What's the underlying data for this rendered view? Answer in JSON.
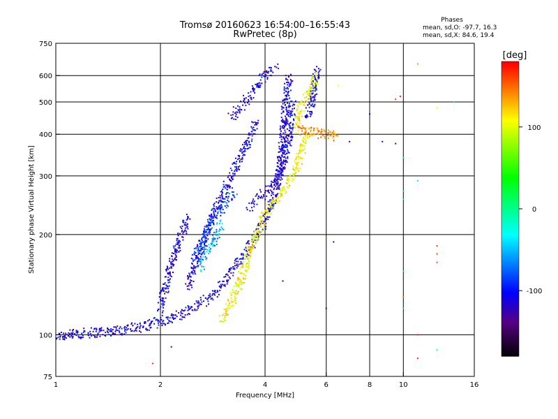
{
  "header": {
    "title": "Tromsø 20160623 16:54:00–16:55:43",
    "subtitle": "RwPretec (8p)",
    "phases_label": "Phases",
    "phases_o": "mean, sd,O: -97.7, 16.3",
    "phases_x": "mean, sd,X:  84.6, 19.4"
  },
  "chart_data": {
    "type": "scatter",
    "xscale": "log",
    "yscale": "log",
    "xlabel": "Frequency [MHz]",
    "ylabel": "Stationary phase Virtual Height [km]",
    "xlim": [
      1,
      16
    ],
    "ylim": [
      75,
      750
    ],
    "xticks": [
      1,
      2,
      4,
      6,
      8,
      10,
      16
    ],
    "xtick_labels": [
      "1",
      "2",
      "4",
      "6",
      "8",
      "10",
      "16"
    ],
    "xgrid": [
      2,
      4,
      6,
      8,
      10
    ],
    "yticks": [
      75,
      100,
      200,
      300,
      400,
      500,
      600,
      750
    ],
    "ytick_labels": [
      "75",
      "100",
      "200",
      "300",
      "400",
      "500",
      "600",
      "750"
    ],
    "ygrid": [
      100,
      200,
      300,
      400,
      500,
      600
    ],
    "grid": true,
    "colorbar": {
      "label": "[deg]",
      "range": [
        -180,
        180
      ],
      "ticks": [
        100,
        0,
        -100
      ],
      "tick_labels": [
        "100",
        "0",
        "-100"
      ]
    },
    "series": [
      {
        "phase": -110,
        "segments": [
          [
            [
              1.0,
              99
            ],
            [
              1.2,
              101
            ],
            [
              1.5,
              103
            ],
            [
              1.8,
              106
            ],
            [
              2.0,
              110
            ],
            [
              2.2,
              113
            ],
            [
              2.4,
              118
            ],
            [
              2.6,
              124
            ],
            [
              2.8,
              130
            ],
            [
              3.0,
              140
            ],
            [
              3.2,
              155
            ],
            [
              3.5,
              175
            ],
            [
              3.8,
              200
            ],
            [
              4.0,
              220
            ],
            [
              4.2,
              250
            ],
            [
              4.4,
              300
            ],
            [
              4.5,
              400
            ],
            [
              4.6,
              520
            ],
            [
              4.7,
              600
            ]
          ],
          [
            [
              2.0,
              120
            ],
            [
              2.1,
              150
            ],
            [
              2.2,
              175
            ],
            [
              2.3,
              200
            ],
            [
              2.4,
              225
            ]
          ],
          [
            [
              2.4,
              140
            ],
            [
              2.6,
              180
            ],
            [
              2.8,
              220
            ],
            [
              3.0,
              260
            ],
            [
              3.2,
              300
            ],
            [
              3.4,
              340
            ],
            [
              3.6,
              390
            ],
            [
              3.8,
              440
            ]
          ],
          [
            [
              3.2,
              450
            ],
            [
              3.5,
              500
            ],
            [
              3.8,
              560
            ],
            [
              4.0,
              610
            ],
            [
              4.3,
              640
            ]
          ],
          [
            [
              3.6,
              240
            ],
            [
              3.9,
              260
            ],
            [
              4.2,
              280
            ],
            [
              4.5,
              320
            ],
            [
              4.7,
              400
            ],
            [
              4.8,
              500
            ]
          ],
          [
            [
              5.3,
              450
            ],
            [
              5.5,
              520
            ],
            [
              5.6,
              600
            ],
            [
              5.7,
              630
            ]
          ]
        ]
      },
      {
        "phase": -85,
        "segments": [
          [
            [
              2.5,
              170
            ],
            [
              2.7,
              200
            ],
            [
              2.9,
              230
            ],
            [
              3.1,
              250
            ],
            [
              3.3,
              270
            ]
          ]
        ]
      },
      {
        "phase": -55,
        "segments": [
          [
            [
              2.6,
              160
            ],
            [
              2.75,
              180
            ],
            [
              2.9,
              200
            ],
            [
              3.0,
              215
            ]
          ]
        ]
      },
      {
        "phase": 110,
        "segments": [
          [
            [
              3.0,
              110
            ],
            [
              3.2,
              125
            ],
            [
              3.4,
              145
            ],
            [
              3.6,
              180
            ],
            [
              3.8,
              200
            ],
            [
              4.0,
              230
            ],
            [
              4.3,
              255
            ],
            [
              4.6,
              280
            ],
            [
              4.8,
              300
            ],
            [
              5.0,
              330
            ],
            [
              5.2,
              390
            ],
            [
              5.3,
              410
            ]
          ],
          [
            [
              4.9,
              420
            ],
            [
              5.0,
              460
            ],
            [
              5.1,
              490
            ],
            [
              5.3,
              520
            ],
            [
              5.5,
              560
            ],
            [
              5.6,
              600
            ]
          ]
        ]
      },
      {
        "phase": 140,
        "segments": [
          [
            [
              5.0,
              415
            ],
            [
              5.5,
              405
            ],
            [
              6.0,
              400
            ],
            [
              6.5,
              395
            ]
          ]
        ]
      }
    ],
    "scattered_points": [
      {
        "x": 1.9,
        "y": 82,
        "phase": 170
      },
      {
        "x": 2.15,
        "y": 92,
        "phase": -110
      },
      {
        "x": 4.5,
        "y": 145,
        "phase": -110
      },
      {
        "x": 6.0,
        "y": 120,
        "phase": -110
      },
      {
        "x": 6.3,
        "y": 190,
        "phase": -110
      },
      {
        "x": 6.5,
        "y": 560,
        "phase": 110
      },
      {
        "x": 7.0,
        "y": 380,
        "phase": -100
      },
      {
        "x": 8.0,
        "y": 460,
        "phase": -110
      },
      {
        "x": 8.7,
        "y": 380,
        "phase": -110
      },
      {
        "x": 9.5,
        "y": 375,
        "phase": -110
      },
      {
        "x": 9.5,
        "y": 510,
        "phase": 160
      },
      {
        "x": 9.8,
        "y": 520,
        "phase": 175
      },
      {
        "x": 10.0,
        "y": 340,
        "phase": 10
      },
      {
        "x": 10.0,
        "y": 270,
        "phase": 10
      },
      {
        "x": 10.0,
        "y": 255,
        "phase": 10
      },
      {
        "x": 10.0,
        "y": 155,
        "phase": 10
      },
      {
        "x": 10.0,
        "y": 130,
        "phase": 150
      },
      {
        "x": 10.0,
        "y": 120,
        "phase": 10
      },
      {
        "x": 11.0,
        "y": 650,
        "phase": 50
      },
      {
        "x": 11.0,
        "y": 290,
        "phase": -40
      },
      {
        "x": 11.0,
        "y": 100,
        "phase": 170
      },
      {
        "x": 11.0,
        "y": 85,
        "phase": 170
      },
      {
        "x": 12.5,
        "y": 480,
        "phase": 110
      },
      {
        "x": 12.5,
        "y": 185,
        "phase": 160
      },
      {
        "x": 12.5,
        "y": 175,
        "phase": 160
      },
      {
        "x": 12.5,
        "y": 165,
        "phase": 160
      },
      {
        "x": 12.5,
        "y": 90,
        "phase": -10
      },
      {
        "x": 14.0,
        "y": 500,
        "phase": 10
      }
    ]
  }
}
